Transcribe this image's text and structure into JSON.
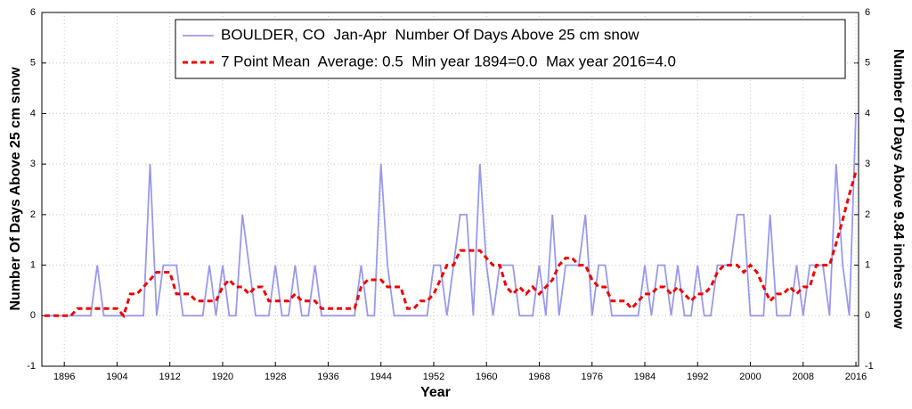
{
  "chart_data": {
    "type": "line",
    "xlabel": "Year",
    "ylabel": "Number Of Days Above 25 cm snow",
    "y2label": "Number Of Days Above 9.84 inches snow",
    "x": [
      1893,
      1894,
      1895,
      1896,
      1897,
      1898,
      1899,
      1900,
      1901,
      1902,
      1903,
      1904,
      1905,
      1906,
      1907,
      1908,
      1909,
      1910,
      1911,
      1912,
      1913,
      1914,
      1915,
      1916,
      1917,
      1918,
      1919,
      1920,
      1921,
      1922,
      1923,
      1924,
      1925,
      1926,
      1927,
      1928,
      1929,
      1930,
      1931,
      1932,
      1933,
      1934,
      1935,
      1936,
      1937,
      1938,
      1939,
      1940,
      1941,
      1942,
      1943,
      1944,
      1945,
      1946,
      1947,
      1948,
      1949,
      1950,
      1951,
      1952,
      1953,
      1954,
      1955,
      1956,
      1957,
      1958,
      1959,
      1960,
      1961,
      1962,
      1963,
      1964,
      1965,
      1966,
      1967,
      1968,
      1969,
      1970,
      1971,
      1972,
      1973,
      1974,
      1975,
      1976,
      1977,
      1978,
      1979,
      1980,
      1981,
      1982,
      1983,
      1984,
      1985,
      1986,
      1987,
      1988,
      1989,
      1990,
      1991,
      1992,
      1993,
      1994,
      1995,
      1996,
      1997,
      1998,
      1999,
      2000,
      2001,
      2002,
      2003,
      2004,
      2005,
      2006,
      2007,
      2008,
      2009,
      2010,
      2011,
      2012,
      2013,
      2014,
      2015,
      2016
    ],
    "series": [
      {
        "name": "BOULDER, CO  Jan-Apr  Number Of Days Above 25 cm snow",
        "color": "#9999ee",
        "dashed": false,
        "values": [
          0,
          0,
          0,
          0,
          0,
          0,
          0,
          0,
          1,
          0,
          0,
          0,
          0,
          0,
          0,
          0,
          3,
          0,
          1,
          1,
          1,
          0,
          0,
          0,
          0,
          1,
          0,
          1,
          0,
          0,
          2,
          1,
          0,
          0,
          0,
          1,
          0,
          0,
          1,
          0,
          0,
          1,
          0,
          0,
          0,
          0,
          0,
          0,
          1,
          0,
          0,
          3,
          1,
          0,
          0,
          0,
          0,
          0,
          0,
          1,
          1,
          0,
          1,
          2,
          2,
          0,
          3,
          1,
          0,
          1,
          1,
          1,
          0,
          0,
          0,
          1,
          0,
          2,
          0,
          1,
          1,
          1,
          2,
          0,
          1,
          1,
          0,
          0,
          0,
          0,
          0,
          1,
          0,
          1,
          1,
          0,
          1,
          0,
          0,
          1,
          0,
          0,
          1,
          1,
          1,
          2,
          2,
          0,
          0,
          0,
          2,
          0,
          0,
          0,
          1,
          0,
          1,
          1,
          1,
          0,
          3,
          1,
          0,
          4
        ]
      },
      {
        "name": "7 Point Mean  Average: 0.5  Min year 1894=0.0  Max year 2016=4.0",
        "color": "#ee0000",
        "dashed": true,
        "values": [
          0,
          0,
          0,
          0,
          0,
          0.14,
          0.14,
          0.14,
          0.14,
          0.14,
          0.14,
          0.14,
          0,
          0.43,
          0.43,
          0.57,
          0.71,
          0.86,
          0.86,
          0.86,
          0.43,
          0.43,
          0.43,
          0.29,
          0.29,
          0.29,
          0.29,
          0.57,
          0.71,
          0.57,
          0.57,
          0.43,
          0.57,
          0.57,
          0.29,
          0.29,
          0.29,
          0.29,
          0.43,
          0.29,
          0.29,
          0.29,
          0.14,
          0.14,
          0.14,
          0.14,
          0.14,
          0.14,
          0.57,
          0.71,
          0.71,
          0.71,
          0.57,
          0.57,
          0.57,
          0.14,
          0.14,
          0.29,
          0.29,
          0.43,
          0.71,
          1,
          1,
          1.29,
          1.29,
          1.29,
          1.29,
          1.14,
          1,
          1,
          0.57,
          0.43,
          0.57,
          0.43,
          0.57,
          0.43,
          0.57,
          0.71,
          1,
          1.14,
          1.14,
          1,
          1,
          0.71,
          0.57,
          0.57,
          0.29,
          0.29,
          0.29,
          0.14,
          0.29,
          0.43,
          0.43,
          0.57,
          0.57,
          0.43,
          0.57,
          0.43,
          0.29,
          0.43,
          0.43,
          0.57,
          0.86,
          1,
          1,
          1,
          0.86,
          1,
          0.86,
          0.57,
          0.29,
          0.43,
          0.43,
          0.57,
          0.43,
          0.57,
          0.57,
          1,
          1,
          1,
          1.43,
          1.9,
          2.4,
          2.85
        ]
      }
    ],
    "xlim": [
      1892.6,
      2016.4
    ],
    "xticks": [
      1896,
      1904,
      1912,
      1920,
      1928,
      1936,
      1944,
      1952,
      1960,
      1968,
      1976,
      1984,
      1992,
      2000,
      2008,
      2016
    ],
    "ylim": [
      -1,
      6
    ],
    "yticks": [
      -1,
      0,
      1,
      2,
      3,
      4,
      5,
      6
    ],
    "y2lim": [
      -1,
      6
    ],
    "y2ticks": [
      -1,
      0,
      1,
      2,
      3,
      4,
      5,
      6
    ],
    "grid": true,
    "legend": "top"
  }
}
